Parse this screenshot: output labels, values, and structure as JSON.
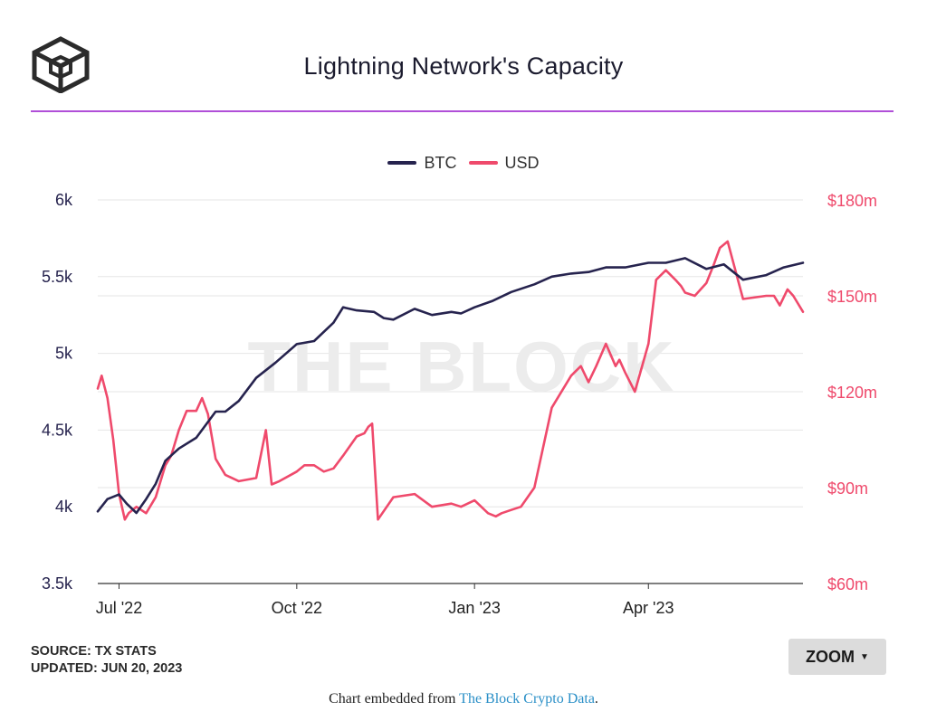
{
  "header": {
    "title": "Lightning Network's Capacity"
  },
  "watermark": "THE BLOCK",
  "colors": {
    "btc": "#26234e",
    "usd": "#ef4a6c",
    "title_rule": "#b04fd8",
    "grid": "#e6e6e6"
  },
  "chart_data": {
    "type": "line",
    "title": "Lightning Network's Capacity",
    "legend_position": "top-center",
    "grid": true,
    "x_tick_labels": [
      "Jul '22",
      "Oct '22",
      "Jan '23",
      "Apr '23"
    ],
    "x_tick_dates": [
      "2022-07-01",
      "2022-10-01",
      "2023-01-01",
      "2023-04-01"
    ],
    "x_range": [
      "2022-06-20",
      "2023-06-20"
    ],
    "y_left": {
      "ticks": [
        "3.5k",
        "4k",
        "4.5k",
        "5k",
        "5.5k",
        "6k"
      ],
      "range": [
        3500,
        6000
      ]
    },
    "y_right": {
      "ticks": [
        "$60m",
        "$90m",
        "$120m",
        "$150m",
        "$180m"
      ],
      "range": [
        60,
        180
      ],
      "unit": "USD millions"
    },
    "series": [
      {
        "name": "BTC",
        "axis": "left",
        "x": [
          "2022-06-20",
          "2022-06-25",
          "2022-07-01",
          "2022-07-05",
          "2022-07-10",
          "2022-07-15",
          "2022-07-20",
          "2022-07-25",
          "2022-08-01",
          "2022-08-10",
          "2022-08-20",
          "2022-08-25",
          "2022-09-01",
          "2022-09-10",
          "2022-09-20",
          "2022-10-01",
          "2022-10-10",
          "2022-10-20",
          "2022-10-25",
          "2022-11-01",
          "2022-11-10",
          "2022-11-15",
          "2022-11-20",
          "2022-12-01",
          "2022-12-10",
          "2022-12-20",
          "2022-12-25",
          "2023-01-01",
          "2023-01-10",
          "2023-01-20",
          "2023-02-01",
          "2023-02-10",
          "2023-02-20",
          "2023-03-01",
          "2023-03-10",
          "2023-03-20",
          "2023-04-01",
          "2023-04-10",
          "2023-04-20",
          "2023-05-01",
          "2023-05-10",
          "2023-05-20",
          "2023-06-01",
          "2023-06-10",
          "2023-06-20"
        ],
        "values": [
          3970,
          4050,
          4080,
          4020,
          3960,
          4050,
          4150,
          4300,
          4380,
          4450,
          4620,
          4620,
          4690,
          4840,
          4940,
          5060,
          5080,
          5200,
          5300,
          5280,
          5270,
          5230,
          5220,
          5290,
          5250,
          5270,
          5260,
          5300,
          5340,
          5400,
          5450,
          5500,
          5520,
          5530,
          5560,
          5560,
          5590,
          5590,
          5620,
          5550,
          5580,
          5480,
          5510,
          5560,
          5590
        ]
      },
      {
        "name": "USD",
        "axis": "right",
        "x": [
          "2022-06-20",
          "2022-06-22",
          "2022-06-25",
          "2022-06-28",
          "2022-07-01",
          "2022-07-04",
          "2022-07-06",
          "2022-07-10",
          "2022-07-15",
          "2022-07-20",
          "2022-07-25",
          "2022-07-28",
          "2022-08-01",
          "2022-08-05",
          "2022-08-10",
          "2022-08-13",
          "2022-08-16",
          "2022-08-20",
          "2022-08-25",
          "2022-09-01",
          "2022-09-10",
          "2022-09-15",
          "2022-09-18",
          "2022-09-22",
          "2022-10-01",
          "2022-10-05",
          "2022-10-10",
          "2022-10-15",
          "2022-10-20",
          "2022-10-25",
          "2022-11-01",
          "2022-11-05",
          "2022-11-07",
          "2022-11-09",
          "2022-11-12",
          "2022-11-20",
          "2022-12-01",
          "2022-12-10",
          "2022-12-20",
          "2022-12-25",
          "2023-01-01",
          "2023-01-08",
          "2023-01-12",
          "2023-01-15",
          "2023-01-20",
          "2023-01-25",
          "2023-02-01",
          "2023-02-10",
          "2023-02-20",
          "2023-02-25",
          "2023-03-01",
          "2023-03-05",
          "2023-03-10",
          "2023-03-15",
          "2023-03-17",
          "2023-03-20",
          "2023-03-25",
          "2023-04-01",
          "2023-04-05",
          "2023-04-10",
          "2023-04-15",
          "2023-04-18",
          "2023-04-20",
          "2023-04-25",
          "2023-05-01",
          "2023-05-05",
          "2023-05-08",
          "2023-05-12",
          "2023-05-20",
          "2023-06-01",
          "2023-06-05",
          "2023-06-08",
          "2023-06-12",
          "2023-06-15",
          "2023-06-20"
        ],
        "values": [
          121,
          125,
          118,
          105,
          88,
          80,
          82,
          84,
          82,
          87,
          97,
          100,
          108,
          114,
          114,
          118,
          113,
          99,
          94,
          92,
          93,
          108,
          91,
          92,
          95,
          97,
          97,
          95,
          96,
          100,
          106,
          107,
          109,
          110,
          80,
          87,
          88,
          84,
          85,
          84,
          86,
          82,
          81,
          82,
          83,
          84,
          90,
          115,
          125,
          128,
          123,
          128,
          135,
          128,
          130,
          126,
          120,
          135,
          155,
          158,
          155,
          153,
          151,
          150,
          154,
          160,
          165,
          167,
          149,
          150,
          150,
          147,
          152,
          150,
          145
        ]
      }
    ]
  },
  "footer": {
    "source_label": "SOURCE: TX STATS",
    "updated_label": "UPDATED: JUN 20, 2023",
    "zoom_label": "ZOOM",
    "embed_prefix": "Chart embedded from ",
    "embed_link": "The Block Crypto Data",
    "embed_suffix": "."
  }
}
